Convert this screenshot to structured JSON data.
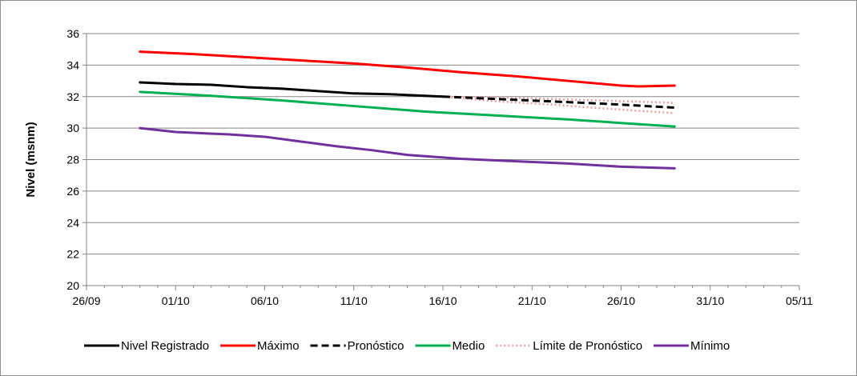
{
  "chart_data": {
    "type": "line",
    "title": "",
    "xlabel": "",
    "ylabel": "Nivel (msnm)",
    "ylim": [
      20,
      36
    ],
    "yticks": [
      20,
      22,
      24,
      26,
      28,
      30,
      32,
      34,
      36
    ],
    "xlim": [
      "2023-09-26",
      "2023-11-05"
    ],
    "xticks": [
      "26/09",
      "01/10",
      "06/10",
      "11/10",
      "16/10",
      "21/10",
      "26/10",
      "31/10",
      "05/11"
    ],
    "grid": "horizontal",
    "legend_position": "bottom",
    "series": [
      {
        "name": "Nivel Registrado",
        "color": "#000000",
        "style": "solid",
        "points": [
          {
            "x": "2023-09-29",
            "y": 32.9
          },
          {
            "x": "2023-10-01",
            "y": 32.8
          },
          {
            "x": "2023-10-03",
            "y": 32.75
          },
          {
            "x": "2023-10-05",
            "y": 32.6
          },
          {
            "x": "2023-10-07",
            "y": 32.5
          },
          {
            "x": "2023-10-09",
            "y": 32.35
          },
          {
            "x": "2023-10-11",
            "y": 32.2
          },
          {
            "x": "2023-10-13",
            "y": 32.15
          },
          {
            "x": "2023-10-16",
            "y": 32.0
          }
        ]
      },
      {
        "name": "Máximo",
        "color": "#ff0000",
        "style": "solid",
        "points": [
          {
            "x": "2023-09-29",
            "y": 34.85
          },
          {
            "x": "2023-10-02",
            "y": 34.7
          },
          {
            "x": "2023-10-05",
            "y": 34.5
          },
          {
            "x": "2023-10-08",
            "y": 34.3
          },
          {
            "x": "2023-10-11",
            "y": 34.1
          },
          {
            "x": "2023-10-14",
            "y": 33.85
          },
          {
            "x": "2023-10-17",
            "y": 33.55
          },
          {
            "x": "2023-10-20",
            "y": 33.3
          },
          {
            "x": "2023-10-23",
            "y": 33.0
          },
          {
            "x": "2023-10-26",
            "y": 32.7
          },
          {
            "x": "2023-10-27",
            "y": 32.65
          },
          {
            "x": "2023-10-29",
            "y": 32.7
          }
        ]
      },
      {
        "name": "Pronóstico",
        "color": "#000000",
        "style": "dashed",
        "points": [
          {
            "x": "2023-10-16",
            "y": 32.0
          },
          {
            "x": "2023-10-19",
            "y": 31.85
          },
          {
            "x": "2023-10-22",
            "y": 31.7
          },
          {
            "x": "2023-10-25",
            "y": 31.55
          },
          {
            "x": "2023-10-29",
            "y": 31.3
          }
        ]
      },
      {
        "name": "Medio",
        "color": "#00b050",
        "style": "solid",
        "points": [
          {
            "x": "2023-09-29",
            "y": 32.3
          },
          {
            "x": "2023-10-03",
            "y": 32.05
          },
          {
            "x": "2023-10-07",
            "y": 31.75
          },
          {
            "x": "2023-10-11",
            "y": 31.4
          },
          {
            "x": "2023-10-15",
            "y": 31.05
          },
          {
            "x": "2023-10-19",
            "y": 30.8
          },
          {
            "x": "2023-10-23",
            "y": 30.55
          },
          {
            "x": "2023-10-27",
            "y": 30.25
          },
          {
            "x": "2023-10-29",
            "y": 30.1
          }
        ]
      },
      {
        "name": "Límite de Pronóstico",
        "color": "#e6a0a0",
        "style": "dotted",
        "band": [
          [
            {
              "x": "2023-10-16",
              "y": 32.0
            },
            {
              "x": "2023-10-19",
              "y": 31.95
            },
            {
              "x": "2023-10-22",
              "y": 31.85
            },
            {
              "x": "2023-10-25",
              "y": 31.75
            },
            {
              "x": "2023-10-29",
              "y": 31.6
            }
          ],
          [
            {
              "x": "2023-10-16",
              "y": 32.0
            },
            {
              "x": "2023-10-19",
              "y": 31.7
            },
            {
              "x": "2023-10-22",
              "y": 31.5
            },
            {
              "x": "2023-10-25",
              "y": 31.25
            },
            {
              "x": "2023-10-29",
              "y": 30.95
            }
          ]
        ]
      },
      {
        "name": "Mínimo",
        "color": "#7030a0",
        "style": "solid",
        "points": [
          {
            "x": "2023-09-29",
            "y": 30.0
          },
          {
            "x": "2023-10-01",
            "y": 29.75
          },
          {
            "x": "2023-10-04",
            "y": 29.6
          },
          {
            "x": "2023-10-06",
            "y": 29.45
          },
          {
            "x": "2023-10-08",
            "y": 29.15
          },
          {
            "x": "2023-10-10",
            "y": 28.85
          },
          {
            "x": "2023-10-12",
            "y": 28.6
          },
          {
            "x": "2023-10-14",
            "y": 28.3
          },
          {
            "x": "2023-10-17",
            "y": 28.05
          },
          {
            "x": "2023-10-20",
            "y": 27.9
          },
          {
            "x": "2023-10-23",
            "y": 27.75
          },
          {
            "x": "2023-10-26",
            "y": 27.55
          },
          {
            "x": "2023-10-29",
            "y": 27.45
          }
        ]
      }
    ],
    "legend_order": [
      "Nivel Registrado",
      "Máximo",
      "Pronóstico",
      "Medio",
      "Límite de Pronóstico",
      "Mínimo"
    ],
    "axis_color": "#868686",
    "grid_color": "#868686"
  }
}
